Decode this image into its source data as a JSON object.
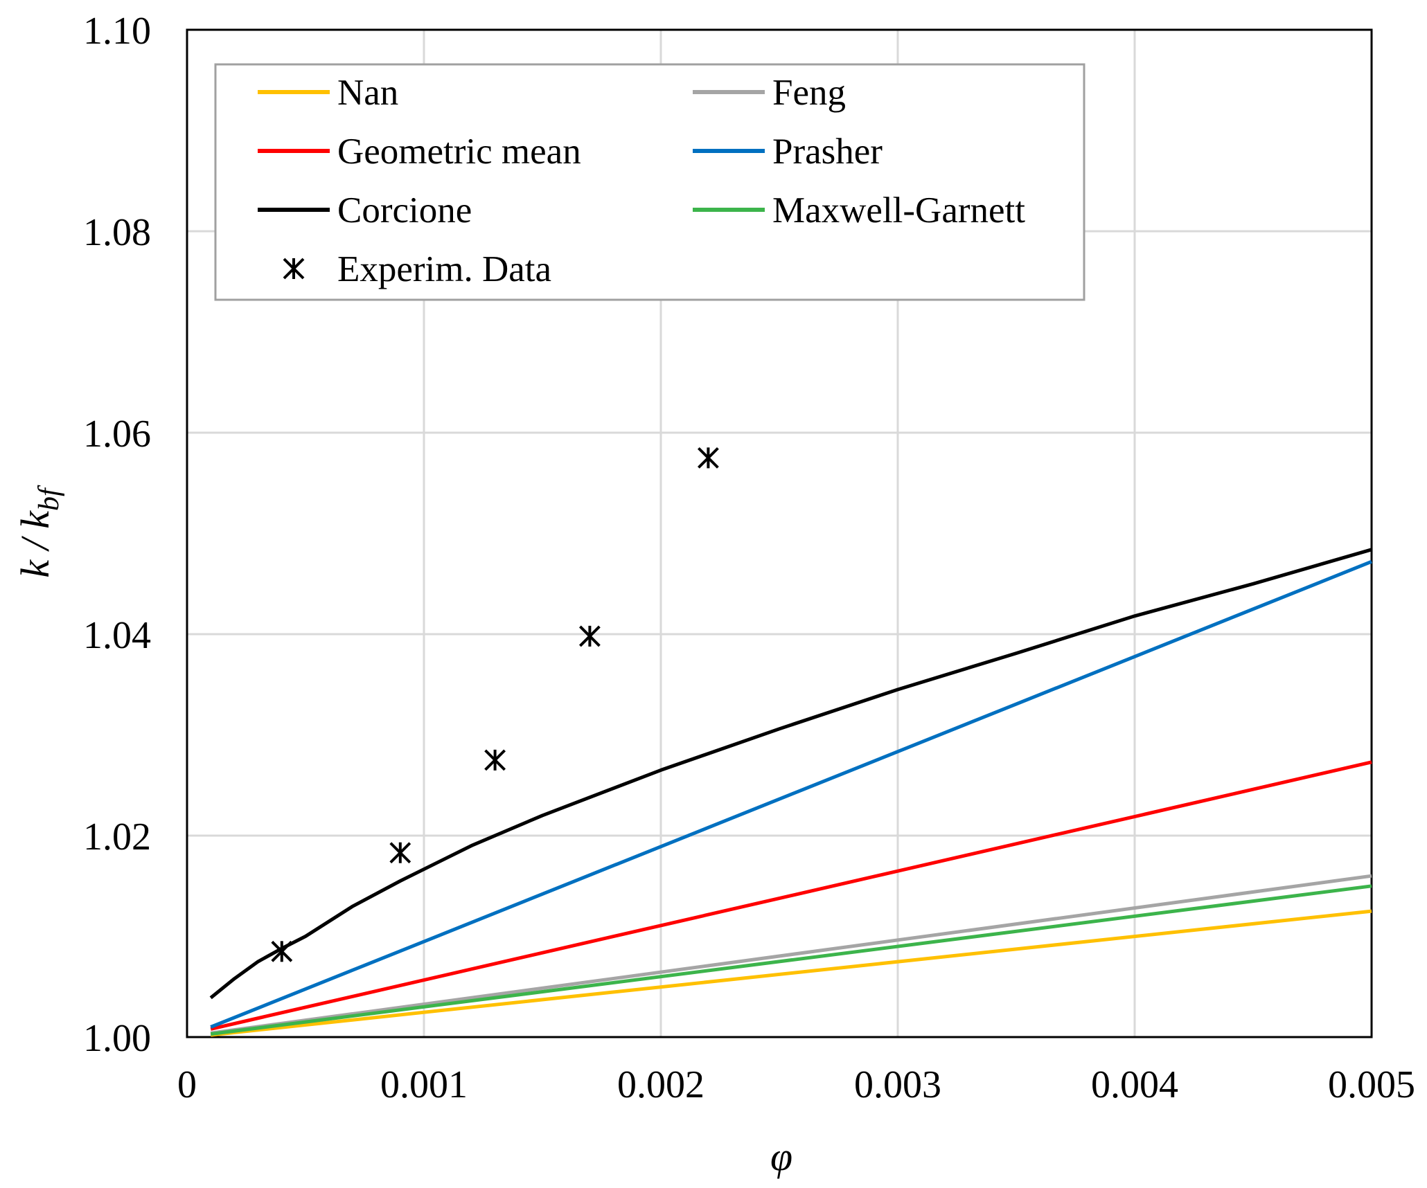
{
  "chart_data": {
    "type": "line",
    "title": "",
    "xlabel": "φ",
    "ylabel": {
      "main": "k / k",
      "subscript": "bf"
    },
    "xlim": [
      0,
      0.005
    ],
    "ylim": [
      1.0,
      1.1
    ],
    "x_ticks": [
      0,
      0.001,
      0.002,
      0.003,
      0.004,
      0.005
    ],
    "x_tick_labels": [
      "0",
      "0.001",
      "0.002",
      "0.003",
      "0.004",
      "0.005"
    ],
    "y_ticks": [
      1.0,
      1.02,
      1.04,
      1.06,
      1.08,
      1.1
    ],
    "y_tick_labels": [
      "1.00",
      "1.02",
      "1.04",
      "1.06",
      "1.08",
      "1.10"
    ],
    "grid": true,
    "legend_position": "top",
    "series": [
      {
        "name": "Nan",
        "color": "#ffc000",
        "x": [
          0.0001,
          0.005
        ],
        "y": [
          1.0002,
          1.0125
        ]
      },
      {
        "name": "Feng",
        "color": "#a5a5a5",
        "x": [
          0.0001,
          0.005
        ],
        "y": [
          1.0004,
          1.016
        ]
      },
      {
        "name": "Geometric mean",
        "color": "#ff0000",
        "x": [
          0.0001,
          0.005
        ],
        "y": [
          1.0008,
          1.0273
        ]
      },
      {
        "name": "Prasher",
        "color": "#0070c0",
        "x": [
          0.0001,
          0.005
        ],
        "y": [
          1.001,
          1.0472
        ]
      },
      {
        "name": "Corcione",
        "color": "#000000",
        "x": [
          0.0001,
          0.0002,
          0.0003,
          0.0004,
          0.0005,
          0.0007,
          0.0009,
          0.0012,
          0.0015,
          0.002,
          0.0025,
          0.003,
          0.0035,
          0.004,
          0.0045,
          0.005
        ],
        "y": [
          1.0039,
          1.0058,
          1.0075,
          1.0088,
          1.01,
          1.013,
          1.0155,
          1.019,
          1.022,
          1.0265,
          1.0306,
          1.0345,
          1.0381,
          1.0418,
          1.045,
          1.0484
        ]
      },
      {
        "name": "Maxwell-Garnett",
        "color": "#3cb44b",
        "x": [
          0.0001,
          0.005
        ],
        "y": [
          1.0003,
          1.015
        ]
      },
      {
        "name": "Experim. Data",
        "type": "scatter",
        "marker": "asterisk",
        "color": "#000000",
        "x": [
          0.0004,
          0.0009,
          0.0013,
          0.0017,
          0.0022
        ],
        "y": [
          1.0085,
          1.0183,
          1.0275,
          1.0398,
          1.0575
        ]
      }
    ],
    "legend_order": [
      "Nan",
      "Feng",
      "Geometric mean",
      "Prasher",
      "Corcione",
      "Maxwell-Garnett",
      "Experim. Data"
    ]
  }
}
